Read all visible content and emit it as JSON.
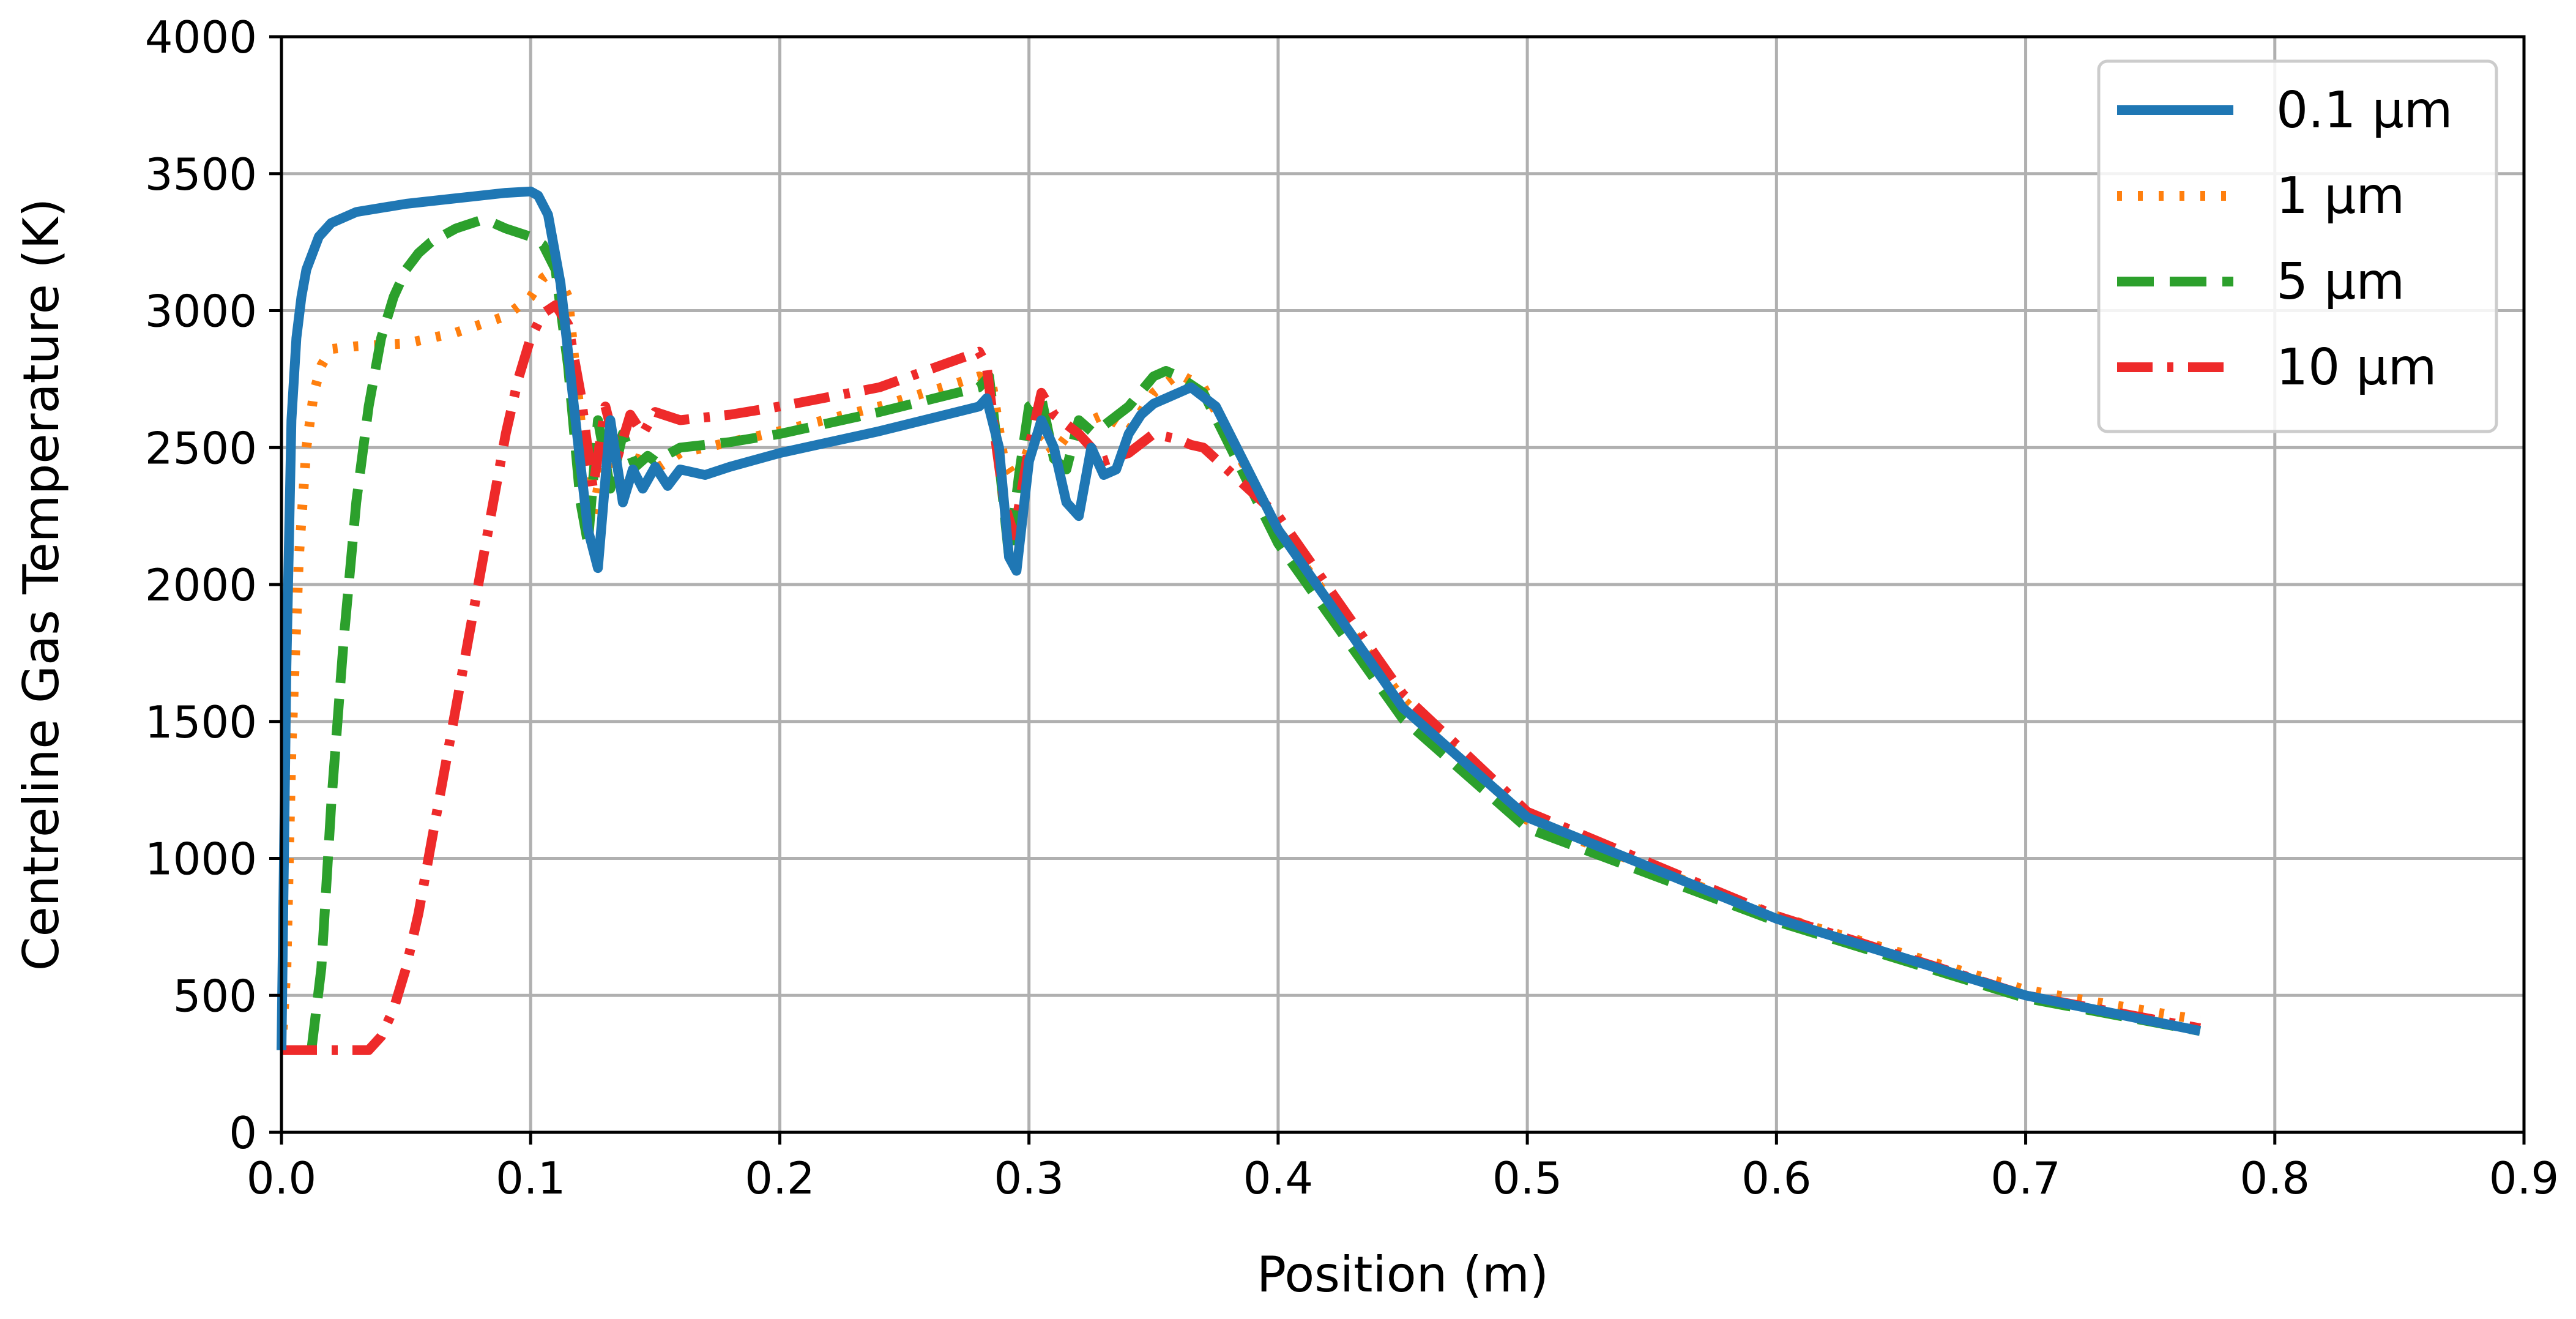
{
  "chart_data": {
    "type": "line",
    "xlabel": "Position (m)",
    "ylabel": "Centreline Gas Temperature (K)",
    "xlim": [
      0.0,
      0.9
    ],
    "ylim": [
      0,
      4000
    ],
    "xticks": [
      "0.0",
      "0.1",
      "0.2",
      "0.3",
      "0.4",
      "0.5",
      "0.6",
      "0.7",
      "0.8",
      "0.9"
    ],
    "yticks": [
      "0",
      "500",
      "1000",
      "1500",
      "2000",
      "2500",
      "3000",
      "3500",
      "4000"
    ],
    "grid": true,
    "legend_position": "top-right",
    "series": [
      {
        "name": "0.1 µm",
        "color": "#1f77b4",
        "style": "solid",
        "x": [
          0.0,
          0.002,
          0.004,
          0.006,
          0.008,
          0.01,
          0.015,
          0.02,
          0.03,
          0.05,
          0.07,
          0.09,
          0.1,
          0.103,
          0.107,
          0.112,
          0.118,
          0.123,
          0.127,
          0.132,
          0.137,
          0.141,
          0.145,
          0.15,
          0.155,
          0.16,
          0.17,
          0.18,
          0.2,
          0.24,
          0.28,
          0.283,
          0.288,
          0.292,
          0.295,
          0.3,
          0.305,
          0.31,
          0.315,
          0.32,
          0.325,
          0.33,
          0.335,
          0.34,
          0.345,
          0.35,
          0.36,
          0.365,
          0.375,
          0.4,
          0.45,
          0.5,
          0.6,
          0.7,
          0.77
        ],
        "y": [
          300,
          1700,
          2600,
          2900,
          3050,
          3150,
          3270,
          3320,
          3360,
          3390,
          3410,
          3430,
          3435,
          3420,
          3350,
          3100,
          2600,
          2200,
          2060,
          2600,
          2300,
          2420,
          2350,
          2430,
          2360,
          2420,
          2400,
          2430,
          2480,
          2560,
          2650,
          2680,
          2500,
          2100,
          2050,
          2450,
          2600,
          2500,
          2300,
          2250,
          2500,
          2400,
          2420,
          2550,
          2620,
          2660,
          2700,
          2720,
          2650,
          2200,
          1550,
          1150,
          780,
          500,
          370
        ]
      },
      {
        "name": "1 µm",
        "color": "#ff7f0e",
        "style": "dotted",
        "x": [
          0.0,
          0.002,
          0.004,
          0.007,
          0.01,
          0.013,
          0.016,
          0.02,
          0.03,
          0.05,
          0.07,
          0.09,
          0.1,
          0.105,
          0.11,
          0.115,
          0.12,
          0.125,
          0.13,
          0.135,
          0.14,
          0.145,
          0.15,
          0.16,
          0.18,
          0.2,
          0.24,
          0.28,
          0.285,
          0.29,
          0.295,
          0.3,
          0.305,
          0.31,
          0.315,
          0.32,
          0.33,
          0.34,
          0.35,
          0.36,
          0.37,
          0.4,
          0.45,
          0.5,
          0.6,
          0.7,
          0.77
        ],
        "y": [
          300,
          600,
          1400,
          2100,
          2500,
          2700,
          2800,
          2860,
          2870,
          2880,
          2920,
          2980,
          3050,
          3120,
          3150,
          3050,
          2600,
          2250,
          2500,
          2420,
          2350,
          2500,
          2420,
          2480,
          2520,
          2560,
          2650,
          2760,
          2740,
          2450,
          2380,
          2500,
          2550,
          2480,
          2540,
          2580,
          2620,
          2560,
          2700,
          2770,
          2720,
          2200,
          1580,
          1140,
          790,
          520,
          410
        ]
      },
      {
        "name": "5 µm",
        "color": "#2ca02c",
        "style": "dashed",
        "x": [
          0.012,
          0.016,
          0.02,
          0.025,
          0.03,
          0.035,
          0.04,
          0.045,
          0.05,
          0.055,
          0.06,
          0.07,
          0.08,
          0.085,
          0.09,
          0.1,
          0.105,
          0.11,
          0.115,
          0.12,
          0.123,
          0.127,
          0.132,
          0.137,
          0.142,
          0.147,
          0.15,
          0.16,
          0.18,
          0.2,
          0.24,
          0.28,
          0.284,
          0.288,
          0.292,
          0.296,
          0.3,
          0.305,
          0.31,
          0.315,
          0.32,
          0.325,
          0.33,
          0.34,
          0.35,
          0.355,
          0.36,
          0.37,
          0.4,
          0.45,
          0.5,
          0.6,
          0.7,
          0.77
        ],
        "y": [
          300,
          600,
          1200,
          1800,
          2300,
          2650,
          2900,
          3050,
          3150,
          3210,
          3250,
          3300,
          3330,
          3320,
          3300,
          3270,
          3240,
          3150,
          2800,
          2300,
          2150,
          2600,
          2350,
          2550,
          2430,
          2470,
          2450,
          2500,
          2520,
          2550,
          2630,
          2720,
          2760,
          2450,
          2100,
          2400,
          2650,
          2680,
          2460,
          2420,
          2600,
          2560,
          2580,
          2650,
          2760,
          2780,
          2760,
          2700,
          2150,
          1510,
          1110,
          770,
          490,
          370
        ]
      },
      {
        "name": "10 µm",
        "color": "#ee2a2a",
        "style": "dashdot",
        "x": [
          0.0,
          0.02,
          0.035,
          0.04,
          0.045,
          0.05,
          0.055,
          0.06,
          0.065,
          0.07,
          0.075,
          0.08,
          0.085,
          0.09,
          0.095,
          0.1,
          0.105,
          0.11,
          0.115,
          0.12,
          0.125,
          0.13,
          0.135,
          0.14,
          0.145,
          0.15,
          0.16,
          0.18,
          0.2,
          0.24,
          0.28,
          0.283,
          0.287,
          0.29,
          0.294,
          0.3,
          0.305,
          0.31,
          0.32,
          0.33,
          0.34,
          0.35,
          0.36,
          0.365,
          0.37,
          0.4,
          0.45,
          0.5,
          0.6,
          0.7,
          0.77
        ],
        "y": [
          300,
          300,
          300,
          350,
          450,
          600,
          800,
          1050,
          1300,
          1550,
          1800,
          2050,
          2300,
          2550,
          2750,
          2900,
          2990,
          3020,
          2950,
          2700,
          2350,
          2650,
          2470,
          2620,
          2550,
          2630,
          2600,
          2620,
          2650,
          2720,
          2850,
          2800,
          2500,
          2300,
          2180,
          2500,
          2700,
          2620,
          2550,
          2450,
          2480,
          2550,
          2530,
          2510,
          2500,
          2250,
          1600,
          1170,
          790,
          500,
          380
        ]
      }
    ]
  }
}
